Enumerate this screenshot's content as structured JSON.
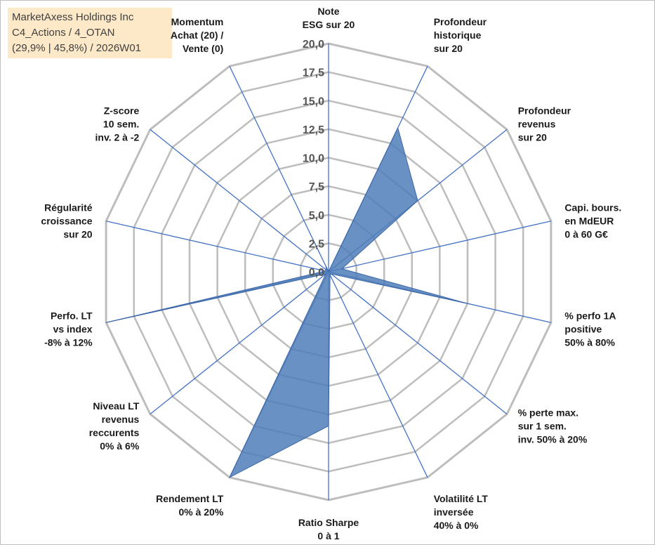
{
  "title_box": {
    "line1": "MarketAxess Holdings Inc",
    "line2": "C4_Actions / 4_OTAN",
    "line3": "(29,9% | 45,8%) / 2026W01"
  },
  "chart_data": {
    "type": "radar",
    "title": "MarketAxess Holdings Inc",
    "rmin": 0,
    "rmax": 20,
    "ticks": [
      "0,0",
      "2,5",
      "5,0",
      "7,5",
      "10,0",
      "12,5",
      "15,0",
      "17,5",
      "20,0"
    ],
    "tick_values": [
      0,
      2.5,
      5,
      7.5,
      10,
      12.5,
      15,
      17.5,
      20
    ],
    "grid": true,
    "axes": [
      {
        "label": [
          "Note",
          "ESG sur 20"
        ],
        "value": 0
      },
      {
        "label": [
          "Profondeur",
          "historique",
          "sur 20"
        ],
        "value": 14
      },
      {
        "label": [
          "Profondeur",
          "revenus",
          "sur 20"
        ],
        "value": 10
      },
      {
        "label": [
          "Capi. bours.",
          "en MdEUR",
          "0 à 60 G€"
        ],
        "value": 1.2
      },
      {
        "label": [
          "% perfo 1A",
          "positive",
          "50% à 80%"
        ],
        "value": 12.5
      },
      {
        "label": [
          "% perte max.",
          "sur 1 sem.",
          "inv. 50% à 20%"
        ],
        "value": 0.3
      },
      {
        "label": [
          "Volatilité LT",
          "inversée",
          "40% à 0%"
        ],
        "value": 0.3
      },
      {
        "label": [
          "Ratio Sharpe",
          "0 à 1"
        ],
        "value": 13.5
      },
      {
        "label": [
          "Rendement LT",
          "0% à 20%"
        ],
        "value": 20
      },
      {
        "label": [
          "Niveau LT",
          "revenus",
          "reccurents",
          "0% à 6%"
        ],
        "value": 0.3
      },
      {
        "label": [
          "Perfo. LT",
          "vs index",
          "-8% à 12%"
        ],
        "value": 20
      },
      {
        "label": [
          "Régularité",
          "croissance",
          "sur 20"
        ],
        "value": 0.3
      },
      {
        "label": [
          "Z-score",
          "10 sem.",
          "inv. 2 à -2"
        ],
        "value": 0.3
      },
      {
        "label": [
          "Momentum",
          "Achat (20) /",
          "Vente (0)"
        ],
        "value": 0.5
      }
    ],
    "series": [
      {
        "values": [
          0,
          14,
          10,
          1.2,
          12.5,
          0.3,
          0.3,
          13.5,
          20,
          0.3,
          20,
          0.3,
          0.3,
          0.5
        ],
        "color": "#4f7eb8"
      }
    ],
    "colors": {
      "grid": "#bdbdbd",
      "spoke": "#4472c4",
      "fill": "#4f7eb8",
      "stroke": "#3c66a8"
    }
  }
}
